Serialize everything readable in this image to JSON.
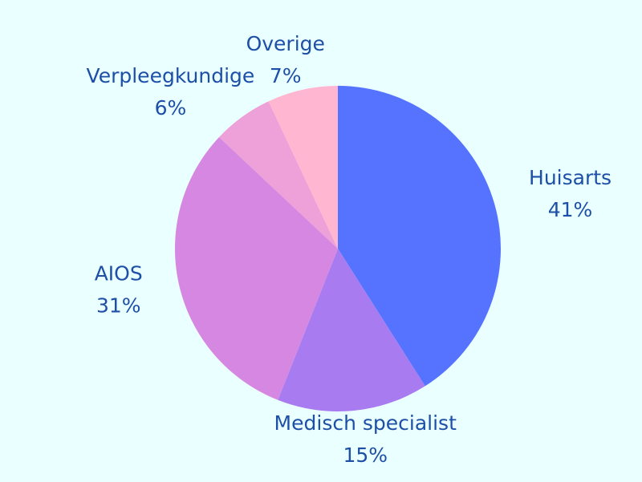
{
  "chart_data": {
    "type": "pie",
    "categories": [
      "Huisarts",
      "Medisch specialist",
      "AIOS",
      "Verpleegkundige",
      "Overige"
    ],
    "values": [
      41,
      15,
      31,
      6,
      7
    ],
    "value_labels": [
      "41%",
      "15%",
      "31%",
      "6%",
      "7%"
    ],
    "colors": [
      "#5573ff",
      "#a87bf0",
      "#d687e2",
      "#eea0d8",
      "#ffb6d0"
    ]
  }
}
